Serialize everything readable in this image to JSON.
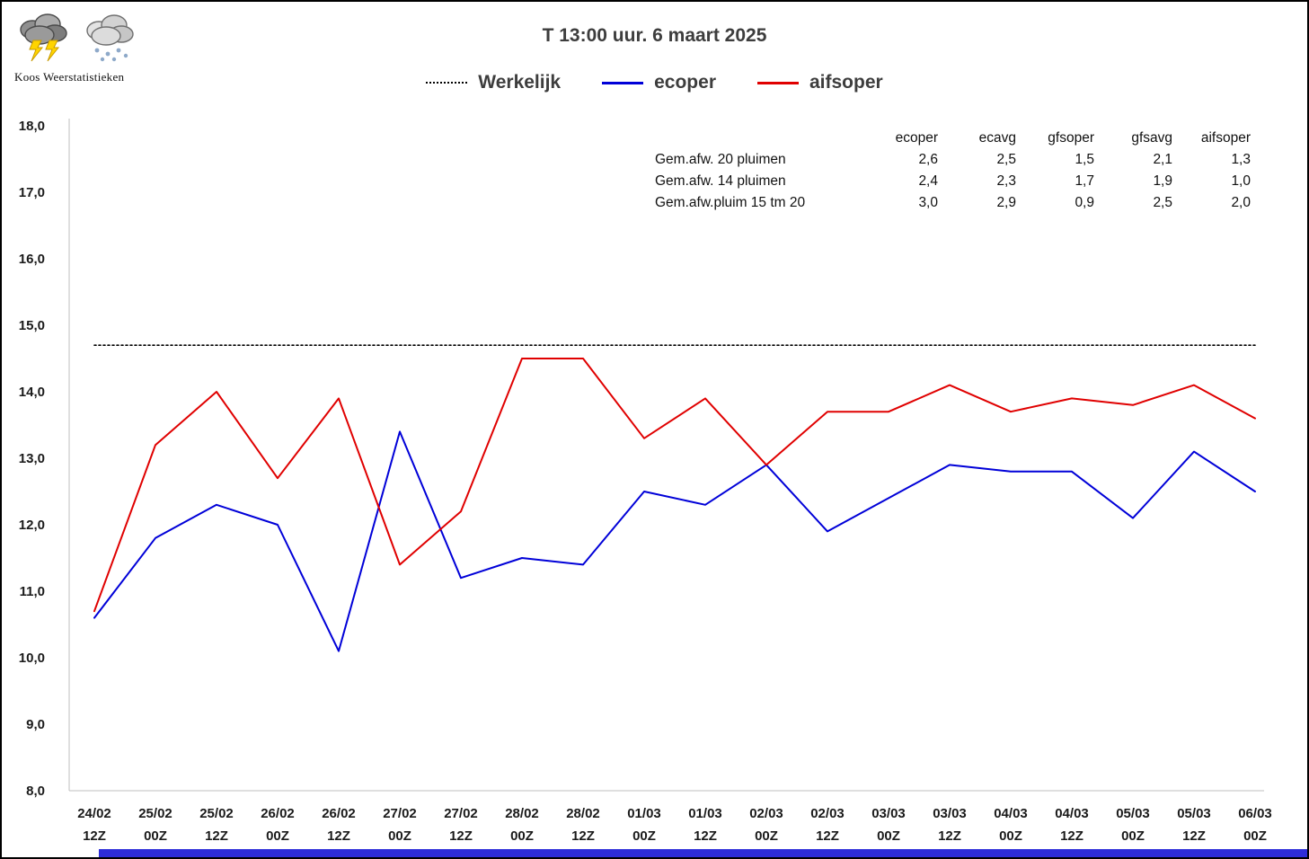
{
  "brand": {
    "name": "Koos Weerstatistieken",
    "icons": [
      "storm-cloud-icon",
      "snow-cloud-icon"
    ]
  },
  "title": "T 13:00 uur.  6 maart 2025",
  "legend": [
    {
      "label": "Werkelijk",
      "color": "#000000",
      "style": "dotted"
    },
    {
      "label": "ecoper",
      "color": "#0000d8",
      "style": "solid"
    },
    {
      "label": "aifsoper",
      "color": "#e00000",
      "style": "solid"
    }
  ],
  "stats_table": {
    "columns": [
      "ecoper",
      "ecavg",
      "gfsoper",
      "gfsavg",
      "aifsoper"
    ],
    "rows": [
      {
        "label": "Gem.afw. 20 pluimen",
        "values": [
          "2,6",
          "2,5",
          "1,5",
          "2,1",
          "1,3"
        ]
      },
      {
        "label": "Gem.afw. 14 pluimen",
        "values": [
          "2,4",
          "2,3",
          "1,7",
          "1,9",
          "1,0"
        ]
      },
      {
        "label": "Gem.afw.pluim 15 tm 20",
        "values": [
          "3,0",
          "2,9",
          "0,9",
          "2,5",
          "2,0"
        ]
      }
    ]
  },
  "chart_data": {
    "type": "line",
    "categories": [
      {
        "date": "24/02",
        "time": "12Z"
      },
      {
        "date": "25/02",
        "time": "00Z"
      },
      {
        "date": "25/02",
        "time": "12Z"
      },
      {
        "date": "26/02",
        "time": "00Z"
      },
      {
        "date": "26/02",
        "time": "12Z"
      },
      {
        "date": "27/02",
        "time": "00Z"
      },
      {
        "date": "27/02",
        "time": "12Z"
      },
      {
        "date": "28/02",
        "time": "00Z"
      },
      {
        "date": "28/02",
        "time": "12Z"
      },
      {
        "date": "01/03",
        "time": "00Z"
      },
      {
        "date": "01/03",
        "time": "12Z"
      },
      {
        "date": "02/03",
        "time": "00Z"
      },
      {
        "date": "02/03",
        "time": "12Z"
      },
      {
        "date": "03/03",
        "time": "00Z"
      },
      {
        "date": "03/03",
        "time": "12Z"
      },
      {
        "date": "04/03",
        "time": "00Z"
      },
      {
        "date": "04/03",
        "time": "12Z"
      },
      {
        "date": "05/03",
        "time": "00Z"
      },
      {
        "date": "05/03",
        "time": "12Z"
      },
      {
        "date": "06/03",
        "time": "00Z"
      }
    ],
    "series": [
      {
        "name": "Werkelijk",
        "color": "#000000",
        "style": "dotted",
        "values": [
          14.7,
          14.7,
          14.7,
          14.7,
          14.7,
          14.7,
          14.7,
          14.7,
          14.7,
          14.7,
          14.7,
          14.7,
          14.7,
          14.7,
          14.7,
          14.7,
          14.7,
          14.7,
          14.7,
          14.7
        ]
      },
      {
        "name": "ecoper",
        "color": "#0000d8",
        "style": "solid",
        "values": [
          10.6,
          11.8,
          12.3,
          12.0,
          10.1,
          13.4,
          11.2,
          11.5,
          11.4,
          12.5,
          12.3,
          12.9,
          11.9,
          12.4,
          12.9,
          12.8,
          12.8,
          12.1,
          13.1,
          12.5
        ]
      },
      {
        "name": "aifsoper",
        "color": "#e00000",
        "style": "solid",
        "values": [
          10.7,
          13.2,
          14.0,
          12.7,
          13.9,
          11.4,
          12.2,
          14.5,
          14.5,
          13.3,
          13.9,
          12.9,
          13.7,
          13.7,
          14.1,
          13.7,
          13.9,
          13.8,
          14.1,
          13.6
        ]
      }
    ],
    "ylim": [
      8.0,
      18.0
    ],
    "y_ticks": [
      {
        "v": 18,
        "label": "18,0"
      },
      {
        "v": 17,
        "label": "17,0"
      },
      {
        "v": 16,
        "label": "16,0"
      },
      {
        "v": 15,
        "label": "15,0"
      },
      {
        "v": 14,
        "label": "14,0"
      },
      {
        "v": 13,
        "label": "13,0"
      },
      {
        "v": 12,
        "label": "12,0"
      },
      {
        "v": 11,
        "label": "11,0"
      },
      {
        "v": 10,
        "label": "10,0"
      },
      {
        "v": 9,
        "label": "9,0"
      },
      {
        "v": 8,
        "label": "8,0"
      }
    ],
    "grid": false,
    "legend_position": "top-center",
    "title": "T 13:00 uur.  6 maart 2025",
    "xlabel": "",
    "ylabel": ""
  }
}
